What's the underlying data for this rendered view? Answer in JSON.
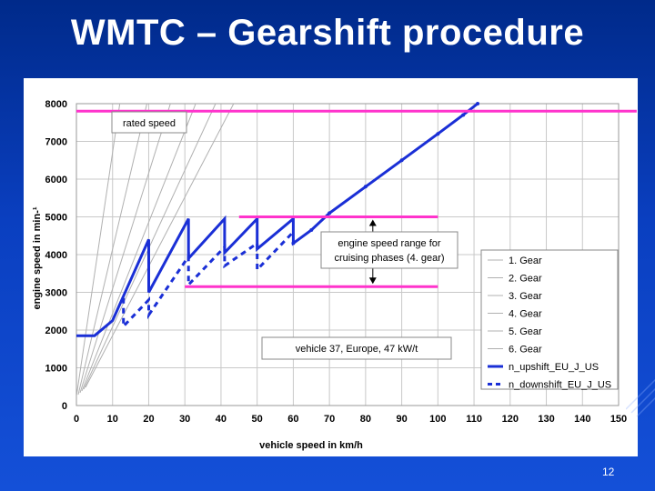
{
  "slide": {
    "title": "WMTC – Gearshift procedure",
    "page_number": "12"
  },
  "colors": {
    "background": "#0a3fc0",
    "magenta": "#ff33cc",
    "upshift": "#1a2fd6",
    "gear_line": "#b0b0b0"
  },
  "chart_data": {
    "type": "line",
    "xlabel": "vehicle speed in km/h",
    "ylabel": "engine speed in min-¹",
    "xlim": [
      0,
      150
    ],
    "ylim": [
      0,
      8000
    ],
    "xticks": [
      "0",
      "10",
      "20",
      "30",
      "40",
      "50",
      "60",
      "70",
      "80",
      "90",
      "100",
      "110",
      "120",
      "130",
      "140",
      "150"
    ],
    "yticks": [
      "0",
      "1000",
      "2000",
      "3000",
      "4000",
      "5000",
      "6000",
      "7000",
      "8000"
    ],
    "grid": true,
    "legend_position": "right",
    "legend": [
      "1. Gear",
      "2. Gear",
      "3. Gear",
      "4. Gear",
      "5. Gear",
      "6. Gear",
      "n_upshift_EU_J_US",
      "n_downshift_EU_J_US"
    ],
    "gear_lines": [
      {
        "name": "1. Gear",
        "x": [
          0,
          12
        ],
        "y": [
          0,
          8000
        ]
      },
      {
        "name": "2. Gear",
        "x": [
          0,
          19.5
        ],
        "y": [
          0,
          8000
        ]
      },
      {
        "name": "3. Gear",
        "x": [
          0,
          26
        ],
        "y": [
          0,
          8000
        ]
      },
      {
        "name": "4. Gear",
        "x": [
          0,
          33
        ],
        "y": [
          0,
          8000
        ]
      },
      {
        "name": "5. Gear",
        "x": [
          0,
          38.5
        ],
        "y": [
          0,
          8000
        ]
      },
      {
        "name": "6. Gear",
        "x": [
          0,
          43.5
        ],
        "y": [
          0,
          8000
        ]
      }
    ],
    "series": [
      {
        "name": "n_upshift_EU_J_US",
        "style": "solid",
        "points": [
          [
            0,
            1850
          ],
          [
            5,
            1850
          ],
          [
            10,
            2250
          ],
          [
            13,
            2900
          ],
          [
            20,
            4400
          ],
          [
            20,
            3000
          ],
          [
            31,
            4950
          ],
          [
            31,
            3900
          ],
          [
            41,
            4950
          ],
          [
            41,
            4050
          ],
          [
            50,
            4950
          ],
          [
            50,
            4150
          ],
          [
            60,
            4950
          ],
          [
            60,
            4300
          ],
          [
            65,
            4650
          ],
          [
            70,
            5100
          ],
          [
            80,
            5800
          ],
          [
            90,
            6500
          ],
          [
            100,
            7200
          ],
          [
            107,
            7700
          ],
          [
            111,
            8000
          ]
        ]
      },
      {
        "name": "n_downshift_EU_J_US",
        "style": "dashed",
        "points": [
          [
            13,
            2850
          ],
          [
            13,
            2100
          ],
          [
            20,
            2800
          ],
          [
            20,
            2400
          ],
          [
            31,
            3950
          ],
          [
            31,
            3200
          ],
          [
            41,
            4200
          ],
          [
            41,
            3700
          ],
          [
            50,
            4300
          ],
          [
            50,
            3600
          ],
          [
            60,
            4600
          ]
        ]
      }
    ],
    "reference_lines": [
      {
        "label": "rated speed",
        "y": 7800,
        "x": [
          0,
          155
        ]
      },
      {
        "label": "cruising_upper",
        "y": 5000,
        "x": [
          45,
          100
        ]
      },
      {
        "label": "cruising_lower",
        "y": 3150,
        "x": [
          30,
          100
        ]
      }
    ],
    "annotations": [
      {
        "text": "rated speed"
      },
      {
        "text": "engine speed range for cruising phases (4. gear)"
      },
      {
        "text": "vehicle 37, Europe, 47 kW/t"
      }
    ]
  }
}
